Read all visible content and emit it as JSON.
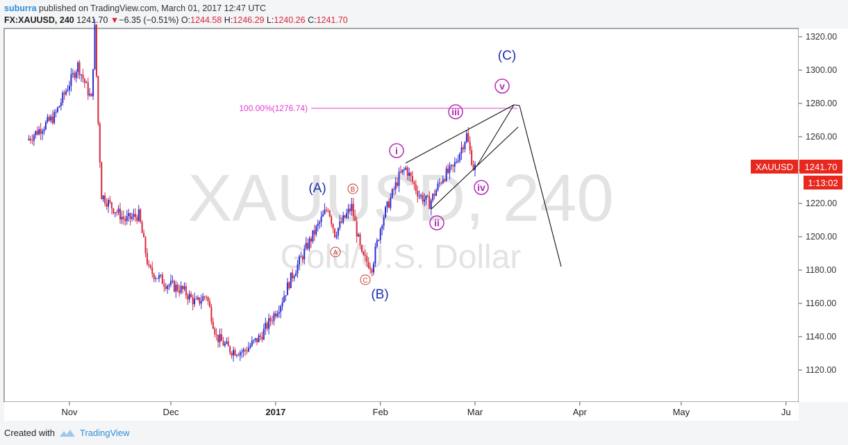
{
  "header": {
    "author": "suburra",
    "published": "published on TradingView.com, March 01, 2017 12:47 UTC"
  },
  "ohlc": {
    "symbol": "FX:XAUUSD, 240",
    "last": "1241.70",
    "change": "−6.35 (−0.51%)",
    "o_label": "O:",
    "o": "1244.58",
    "h_label": "H:",
    "h": "1246.29",
    "l_label": "L:",
    "l": "1240.26",
    "c_label": "C:",
    "c": "1241.70"
  },
  "watermark": {
    "main": "XAUUSD, 240",
    "sub": "Gold/U.S. Dollar"
  },
  "price_tag": {
    "symbol": "XAUUSD",
    "price": "1241.70",
    "countdown": "1:13:02"
  },
  "fib_label": "100.00%(1276.74)",
  "footer": {
    "created": "Created with",
    "brand": "TradingView"
  },
  "chart_data": {
    "type": "candlestick",
    "title": "FX:XAUUSD, 240",
    "ylim": [
      1100,
      1325
    ],
    "y_ticks": [
      "1320.00",
      "1300.00",
      "1280.00",
      "1260.00",
      "1240.00",
      "1220.00",
      "1200.00",
      "1180.00",
      "1160.00",
      "1140.00",
      "1120.00"
    ],
    "x_ticks": [
      "Nov",
      "Dec",
      "2017",
      "Feb",
      "Mar",
      "Apr",
      "May",
      "Ju"
    ],
    "colors": {
      "up": "#2b2bcf",
      "down": "#d8263a",
      "wave_major": "#1a2ea8",
      "wave_minor": "#b02bb5",
      "wave_abc": "#c43a2a",
      "fib": "#e03ad0",
      "tag": "#e8281e"
    },
    "price_path": [
      [
        "2016-10-20",
        1258
      ],
      [
        "2016-10-24",
        1265
      ],
      [
        "2016-10-28",
        1272
      ],
      [
        "2016-11-01",
        1290
      ],
      [
        "2016-11-04",
        1303
      ],
      [
        "2016-11-08",
        1282
      ],
      [
        "2016-11-09",
        1325
      ],
      [
        "2016-11-10",
        1268
      ],
      [
        "2016-11-11",
        1225
      ],
      [
        "2016-11-14",
        1218
      ],
      [
        "2016-11-18",
        1210
      ],
      [
        "2016-11-22",
        1213
      ],
      [
        "2016-11-25",
        1180
      ],
      [
        "2016-11-30",
        1172
      ],
      [
        "2016-12-05",
        1168
      ],
      [
        "2016-12-09",
        1160
      ],
      [
        "2016-12-12",
        1165
      ],
      [
        "2016-12-15",
        1140
      ],
      [
        "2016-12-19",
        1132
      ],
      [
        "2016-12-23",
        1131
      ],
      [
        "2016-12-28",
        1140
      ],
      [
        "2017-01-03",
        1160
      ],
      [
        "2017-01-06",
        1175
      ],
      [
        "2017-01-11",
        1195
      ],
      [
        "2017-01-17",
        1218
      ],
      [
        "2017-01-19",
        1202
      ],
      [
        "2017-01-24",
        1218
      ],
      [
        "2017-01-27",
        1188
      ],
      [
        "2017-01-30",
        1182
      ],
      [
        "2017-02-02",
        1210
      ],
      [
        "2017-02-07",
        1236
      ],
      [
        "2017-02-09",
        1241
      ],
      [
        "2017-02-13",
        1225
      ],
      [
        "2017-02-16",
        1220
      ],
      [
        "2017-02-20",
        1236
      ],
      [
        "2017-02-23",
        1241
      ],
      [
        "2017-02-27",
        1261
      ],
      [
        "2017-02-28",
        1251
      ],
      [
        "2017-03-01",
        1241.7
      ]
    ],
    "wave_labels": {
      "major": [
        "(A)",
        "(B)",
        "(C)"
      ],
      "minor": [
        "i",
        "ii",
        "iii",
        "iv",
        "v"
      ],
      "abc": [
        "A",
        "B",
        "C"
      ]
    },
    "fib_level": 1276.74
  }
}
